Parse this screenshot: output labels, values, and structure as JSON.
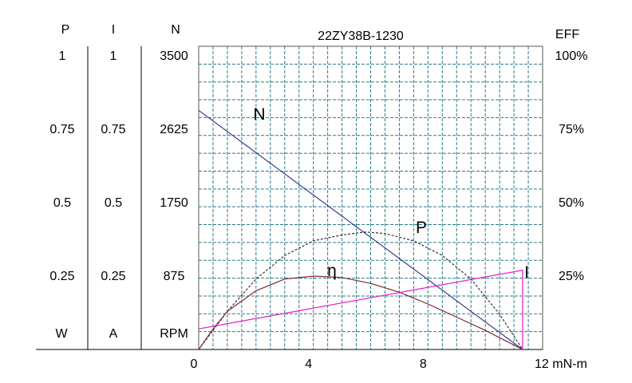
{
  "chart_data": {
    "type": "line",
    "title": "22ZY38B-1230",
    "xlabel": "mN-m",
    "x_ticks": [
      0,
      4,
      8,
      12
    ],
    "xlim": [
      0,
      12
    ],
    "grid": true,
    "left_axes": [
      {
        "name": "P",
        "unit": "W",
        "ticks": [
          "1",
          "0.75",
          "0.5",
          "0.25"
        ],
        "range": [
          0,
          1
        ]
      },
      {
        "name": "I",
        "unit": "A",
        "ticks": [
          "1",
          "0.75",
          "0.5",
          "0.25"
        ],
        "range": [
          0,
          1
        ]
      },
      {
        "name": "N",
        "unit": "RPM",
        "ticks": [
          "3500",
          "2625",
          "1750",
          "875"
        ],
        "range": [
          0,
          3500
        ]
      }
    ],
    "right_axis": {
      "name": "EFF",
      "ticks": [
        "100%",
        "75%",
        "50%",
        "25%"
      ],
      "range": [
        0,
        100
      ]
    },
    "series": [
      {
        "name": "N",
        "axis": "N",
        "color": "#3a3f8c",
        "style": "solid",
        "x": [
          0,
          11.3
        ],
        "y": [
          2850,
          0
        ]
      },
      {
        "name": "P",
        "axis": "P",
        "color": "#333333",
        "style": "dashed",
        "x": [
          0,
          1,
          2,
          3,
          4,
          5,
          5.8,
          6.5,
          7.5,
          8.5,
          9.5,
          10.5,
          11.3
        ],
        "y": [
          0,
          0.13,
          0.24,
          0.32,
          0.37,
          0.39,
          0.4,
          0.395,
          0.37,
          0.32,
          0.24,
          0.12,
          0
        ]
      },
      {
        "name": "η",
        "axis": "EFF",
        "color": "#7a2a3a",
        "style": "solid",
        "x": [
          0,
          0.5,
          1,
          2,
          3,
          4,
          5,
          6,
          7,
          8,
          9,
          10,
          11.3
        ],
        "y": [
          0,
          7,
          13,
          20,
          24,
          25,
          24.5,
          22.5,
          19.5,
          15.5,
          11,
          6.5,
          0
        ]
      },
      {
        "name": "I",
        "axis": "I",
        "color": "#e020c8",
        "style": "solid",
        "x": [
          0,
          11.3,
          11.3
        ],
        "y": [
          0.07,
          0.27,
          0
        ]
      }
    ]
  }
}
